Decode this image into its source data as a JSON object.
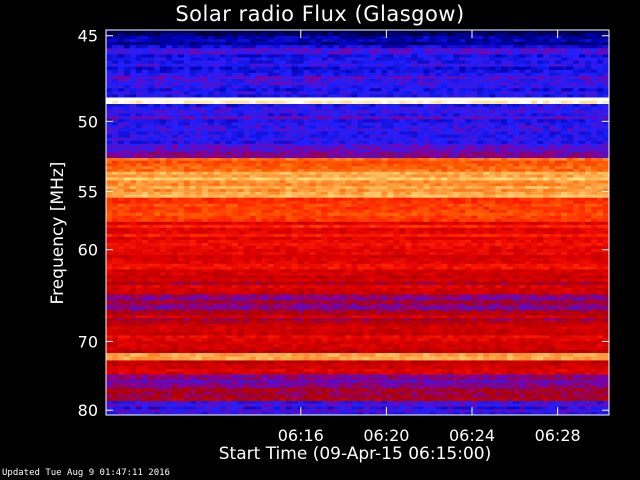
{
  "chart_data": {
    "type": "heatmap",
    "title": "Solar radio Flux (Glasgow)",
    "xlabel": "Start Time (09-Apr-15 06:15:00)",
    "ylabel": "Frequency [MHz]",
    "x_range_minutes": [
      6.9,
      30.4
    ],
    "x_ticks": [
      {
        "minute": 16,
        "label": "06:16"
      },
      {
        "minute": 20,
        "label": "06:20"
      },
      {
        "minute": 24,
        "label": "06:24"
      },
      {
        "minute": 28,
        "label": "06:28"
      }
    ],
    "ylim": [
      44.7,
      80.8
    ],
    "y_ticks": [
      45,
      50,
      55,
      60,
      70,
      80
    ],
    "y_scale": "reciprocal",
    "grid": false,
    "colormap": [
      "#000040",
      "#0000b0",
      "#2020ff",
      "#8000a0",
      "#b00000",
      "#e00000",
      "#ff2000",
      "#ff6000",
      "#ffa040",
      "#ffe080",
      "#ffffff"
    ],
    "intensity_bands": [
      {
        "freq_start": 44.7,
        "freq_end": 45.5,
        "level": 0.05
      },
      {
        "freq_start": 45.5,
        "freq_end": 48.5,
        "level": 0.2
      },
      {
        "freq_start": 48.5,
        "freq_end": 48.9,
        "level": 1.0
      },
      {
        "freq_start": 48.9,
        "freq_end": 51.5,
        "level": 0.22
      },
      {
        "freq_start": 51.5,
        "freq_end": 52.5,
        "level": 0.3
      },
      {
        "freq_start": 52.5,
        "freq_end": 53.5,
        "level": 0.7
      },
      {
        "freq_start": 53.5,
        "freq_end": 55.5,
        "level": 0.82
      },
      {
        "freq_start": 55.5,
        "freq_end": 57.5,
        "level": 0.62
      },
      {
        "freq_start": 57.5,
        "freq_end": 60.5,
        "level": 0.55
      },
      {
        "freq_start": 60.5,
        "freq_end": 62.5,
        "level": 0.5
      },
      {
        "freq_start": 62.5,
        "freq_end": 64.5,
        "level": 0.45
      },
      {
        "freq_start": 64.5,
        "freq_end": 66.5,
        "level": 0.35
      },
      {
        "freq_start": 66.5,
        "freq_end": 68.5,
        "level": 0.42
      },
      {
        "freq_start": 68.5,
        "freq_end": 71.5,
        "level": 0.48
      },
      {
        "freq_start": 71.5,
        "freq_end": 72.5,
        "level": 0.8
      },
      {
        "freq_start": 72.5,
        "freq_end": 74.5,
        "level": 0.45
      },
      {
        "freq_start": 74.5,
        "freq_end": 76.5,
        "level": 0.32
      },
      {
        "freq_start": 76.5,
        "freq_end": 78.5,
        "level": 0.38
      },
      {
        "freq_start": 78.5,
        "freq_end": 80.8,
        "level": 0.22
      }
    ]
  },
  "footer": "Updated Tue Aug  9 01:47:11 2016"
}
